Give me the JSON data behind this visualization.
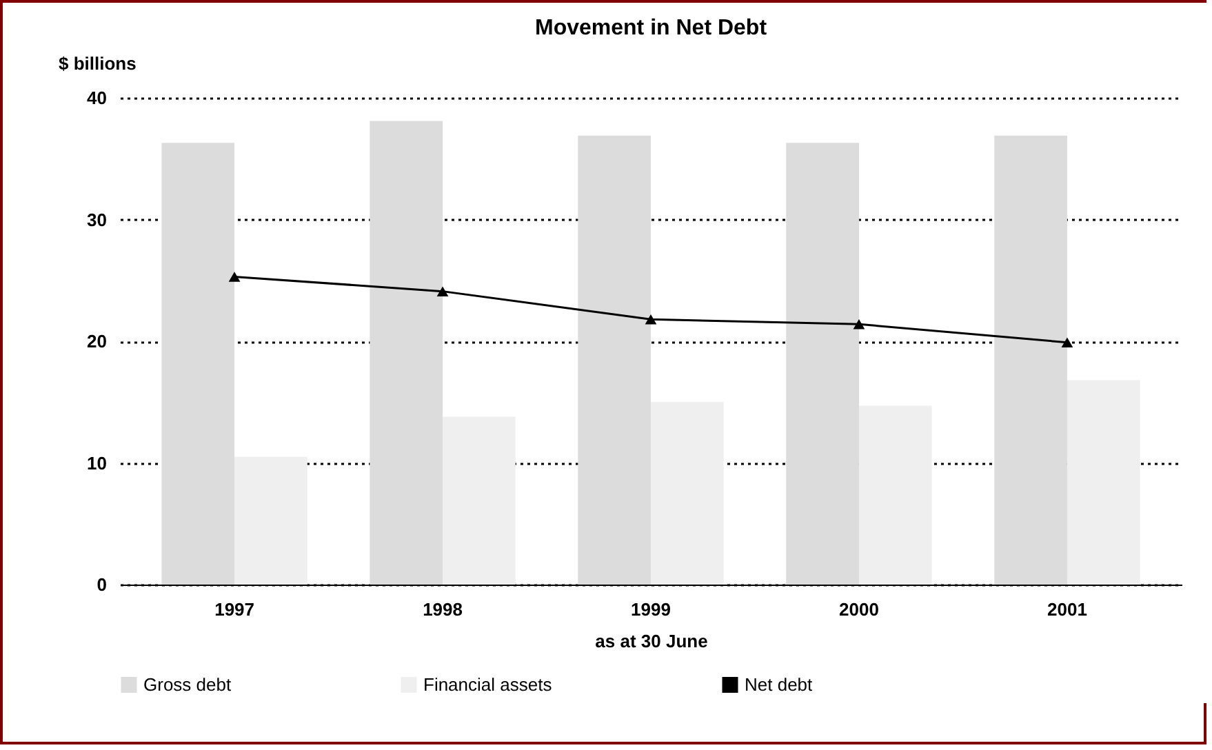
{
  "chart_data": {
    "type": "bar",
    "title": "Movement in Net Debt",
    "xlabel": "as at 30 June",
    "ylabel": "$ billions",
    "categories": [
      "1997",
      "1998",
      "1999",
      "2000",
      "2001"
    ],
    "series": [
      {
        "name": "Gross debt",
        "color": "#dcdcdc",
        "values": [
          36.3,
          38.1,
          36.9,
          36.3,
          36.9
        ]
      },
      {
        "name": "Financial assets",
        "color": "#efefef",
        "values": [
          10.5,
          13.8,
          15.0,
          14.7,
          16.8
        ]
      },
      {
        "name": "Net debt",
        "type": "line",
        "color": "#000000",
        "marker": "triangle",
        "line_style": "solid",
        "values": [
          25.3,
          24.1,
          21.8,
          21.4,
          19.9
        ]
      }
    ],
    "ylim": [
      0,
      40
    ],
    "yticks": [
      0,
      10,
      20,
      30,
      40
    ],
    "grid": "y",
    "legend": "bottom"
  }
}
